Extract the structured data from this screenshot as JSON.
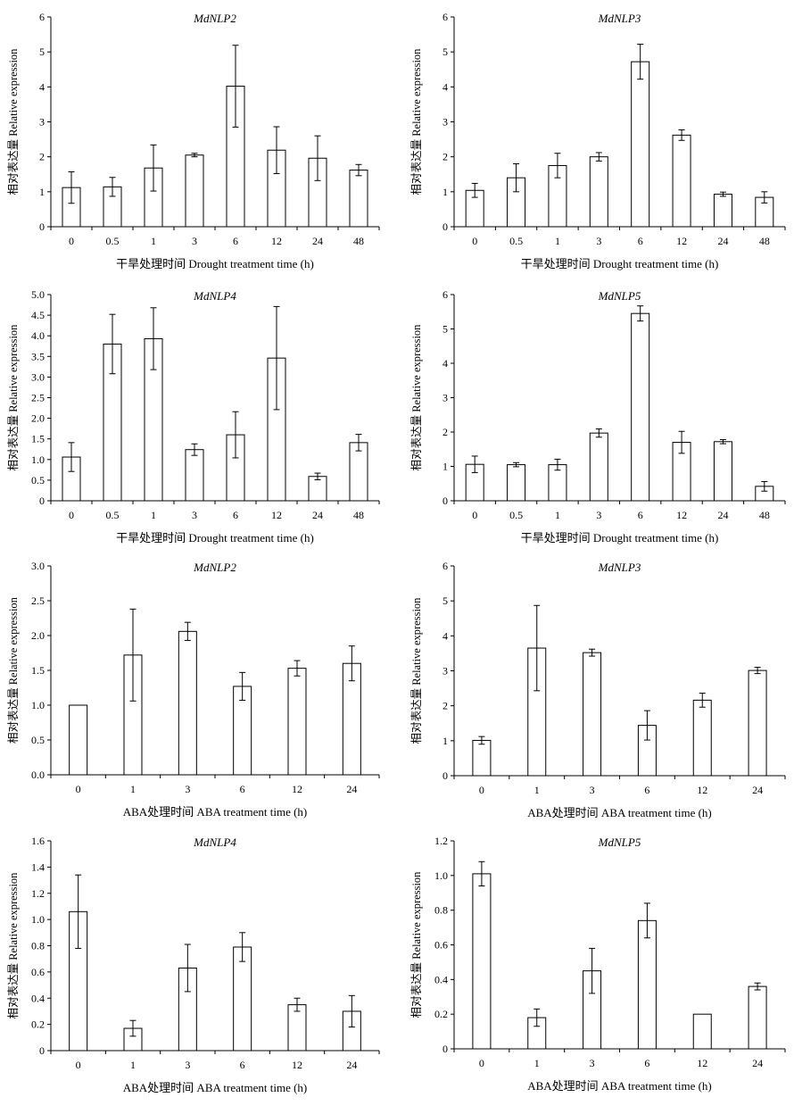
{
  "figure": {
    "ylabel": "相对表达量 Relative expression",
    "xlabel_drought": "干旱处理时间 Drought treatment time (h)",
    "xlabel_aba": "ABA处理时间 ABA treatment time (h)"
  },
  "chart_data": [
    {
      "type": "bar",
      "panel": "drought-nlp2",
      "title": "MdNLP2",
      "xlabel": "干旱处理时间 Drought treatment time (h)",
      "ylabel": "相对表达量 Relative expression",
      "categories": [
        "0",
        "0.5",
        "1",
        "3",
        "6",
        "12",
        "24",
        "48"
      ],
      "values": [
        1.12,
        1.14,
        1.68,
        2.05,
        4.02,
        2.19,
        1.96,
        1.62
      ],
      "errors": [
        0.45,
        0.27,
        0.66,
        0.05,
        1.17,
        0.67,
        0.64,
        0.16
      ],
      "ylim": [
        0,
        6
      ],
      "yticks": [
        "0",
        "1",
        "2",
        "3",
        "4",
        "5",
        "6"
      ],
      "grid": false
    },
    {
      "type": "bar",
      "panel": "drought-nlp3",
      "title": "MdNLP3",
      "xlabel": "干旱处理时间 Drought treatment time (h)",
      "ylabel": "相对表达量 Relative expression",
      "categories": [
        "0",
        "0.5",
        "1",
        "3",
        "6",
        "12",
        "24",
        "48"
      ],
      "values": [
        1.04,
        1.4,
        1.75,
        2.0,
        4.72,
        2.62,
        0.93,
        0.84
      ],
      "errors": [
        0.2,
        0.4,
        0.35,
        0.12,
        0.5,
        0.15,
        0.06,
        0.16
      ],
      "ylim": [
        0,
        6
      ],
      "yticks": [
        "0",
        "1",
        "2",
        "3",
        "4",
        "5",
        "6"
      ],
      "grid": false
    },
    {
      "type": "bar",
      "panel": "drought-nlp4",
      "title": "MdNLP4",
      "xlabel": "干旱处理时间 Drought treatment time (h)",
      "ylabel": "相对表达量 Relative expression",
      "categories": [
        "0",
        "0.5",
        "1",
        "3",
        "6",
        "12",
        "24",
        "48"
      ],
      "values": [
        1.06,
        3.8,
        3.93,
        1.24,
        1.6,
        3.46,
        0.59,
        1.41
      ],
      "errors": [
        0.35,
        0.72,
        0.75,
        0.14,
        0.56,
        1.25,
        0.08,
        0.2
      ],
      "ylim": [
        0,
        5
      ],
      "yticks": [
        "0",
        "0.5",
        "1.0",
        "1.5",
        "2.0",
        "2.5",
        "3.0",
        "3.5",
        "4.0",
        "4.5",
        "5.0"
      ],
      "grid": false
    },
    {
      "type": "bar",
      "panel": "drought-nlp5",
      "title": "MdNLP5",
      "xlabel": "干旱处理时间 Drought treatment time (h)",
      "ylabel": "相对表达量 Relative expression",
      "categories": [
        "0",
        "0.5",
        "1",
        "3",
        "6",
        "12",
        "24",
        "48"
      ],
      "values": [
        1.06,
        1.05,
        1.05,
        1.97,
        5.45,
        1.7,
        1.72,
        0.42
      ],
      "errors": [
        0.24,
        0.06,
        0.16,
        0.12,
        0.22,
        0.32,
        0.06,
        0.14
      ],
      "ylim": [
        0,
        6
      ],
      "yticks": [
        "0",
        "1",
        "2",
        "3",
        "4",
        "5",
        "6"
      ],
      "grid": false
    },
    {
      "type": "bar",
      "panel": "aba-nlp2",
      "title": "MdNLP2",
      "xlabel": "ABA处理时间 ABA treatment time (h)",
      "ylabel": "相对表达量 Relative expression",
      "categories": [
        "0",
        "1",
        "3",
        "6",
        "12",
        "24"
      ],
      "values": [
        1.0,
        1.72,
        2.06,
        1.27,
        1.53,
        1.6
      ],
      "errors": [
        0,
        0.66,
        0.13,
        0.2,
        0.11,
        0.25
      ],
      "ylim": [
        0,
        3
      ],
      "yticks": [
        "0.0",
        "0.5",
        "1.0",
        "1.5",
        "2.0",
        "2.5",
        "3.0"
      ],
      "grid": false
    },
    {
      "type": "bar",
      "panel": "aba-nlp3",
      "title": "MdNLP3",
      "xlabel": "ABA处理时间 ABA treatment time (h)",
      "ylabel": "相对表达量 Relative expression",
      "categories": [
        "0",
        "1",
        "3",
        "6",
        "12",
        "24"
      ],
      "values": [
        1.01,
        3.65,
        3.52,
        1.44,
        2.16,
        3.01
      ],
      "errors": [
        0.11,
        1.22,
        0.1,
        0.42,
        0.2,
        0.09
      ],
      "ylim": [
        0,
        6
      ],
      "yticks": [
        "0",
        "1",
        "2",
        "3",
        "4",
        "5",
        "6"
      ],
      "grid": false
    },
    {
      "type": "bar",
      "panel": "aba-nlp4",
      "title": "MdNLP4",
      "xlabel": "ABA处理时间 ABA treatment time (h)",
      "ylabel": "相对表达量 Relative expression",
      "categories": [
        "0",
        "1",
        "3",
        "6",
        "12",
        "24"
      ],
      "values": [
        1.06,
        0.17,
        0.63,
        0.79,
        0.35,
        0.3
      ],
      "errors": [
        0.28,
        0.06,
        0.18,
        0.11,
        0.05,
        0.12
      ],
      "ylim": [
        0,
        1.6
      ],
      "yticks": [
        "0",
        "0.2",
        "0.4",
        "0.6",
        "0.8",
        "1.0",
        "1.2",
        "1.4",
        "1.6"
      ],
      "grid": false
    },
    {
      "type": "bar",
      "panel": "aba-nlp5",
      "title": "MdNLP5",
      "xlabel": "ABA处理时间 ABA treatment time (h)",
      "ylabel": "相对表达量 Relative expression",
      "categories": [
        "0",
        "1",
        "3",
        "6",
        "12",
        "24"
      ],
      "values": [
        1.01,
        0.18,
        0.45,
        0.74,
        0.2,
        0.36
      ],
      "errors": [
        0.07,
        0.05,
        0.13,
        0.1,
        0.0,
        0.02
      ],
      "ylim": [
        0,
        1.2
      ],
      "yticks": [
        "0",
        "0.2",
        "0.4",
        "0.6",
        "0.8",
        "1.0",
        "1.2"
      ],
      "grid": false
    }
  ]
}
